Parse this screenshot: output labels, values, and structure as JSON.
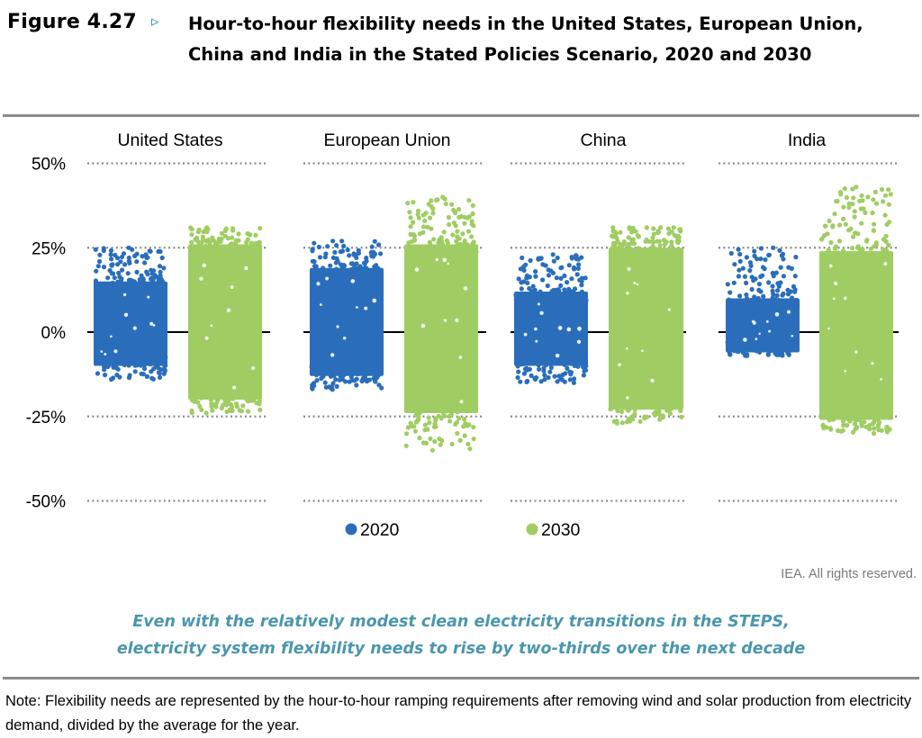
{
  "header": {
    "figure_label": "Figure 4.27",
    "arrow_glyph": "▹",
    "title": "Hour-to-hour flexibility needs in the United States, European Union, China and India in the Stated Policies Scenario, 2020 and 2030"
  },
  "colors": {
    "series_2020": "#2a6ebb",
    "series_2030": "#a0cd63",
    "gridline": "#8a8a8a",
    "zero_line": "#000000",
    "key_message": "#4a97ad",
    "rule": "#8c8c8c"
  },
  "chart_data": {
    "type": "scatter",
    "subtype": "strip-plot (jittered hourly points)",
    "title": "Hour-to-hour flexibility needs in the United States, European Union, China and India in the Stated Policies Scenario, 2020 and 2030",
    "xlabel": "",
    "ylabel": "",
    "y_unit": "% of yearly average",
    "ylim": [
      -50,
      50
    ],
    "yticks": [
      50,
      25,
      0,
      -25,
      -50
    ],
    "ytick_labels": [
      "50%",
      "25%",
      "0%",
      "-25%",
      "-50%"
    ],
    "grid": "dotted horizontal at 50%, 25%, -25%, -50%; solid line at 0%",
    "legend_position": "bottom-center",
    "categories": [
      "United States",
      "European Union",
      "China",
      "India"
    ],
    "series": [
      {
        "name": "2020",
        "color": "#2a6ebb",
        "ranges": [
          {
            "category": "United States",
            "dense_min": -10,
            "dense_max": 15,
            "min": -14,
            "max": 25
          },
          {
            "category": "European Union",
            "dense_min": -13,
            "dense_max": 19,
            "min": -17,
            "max": 27
          },
          {
            "category": "China",
            "dense_min": -10,
            "dense_max": 12,
            "min": -15,
            "max": 23
          },
          {
            "category": "India",
            "dense_min": -6,
            "dense_max": 10,
            "min": -7,
            "max": 25
          }
        ]
      },
      {
        "name": "2030",
        "color": "#a0cd63",
        "ranges": [
          {
            "category": "United States",
            "dense_min": -20,
            "dense_max": 26,
            "min": -24,
            "max": 31
          },
          {
            "category": "European Union",
            "dense_min": -24,
            "dense_max": 26,
            "min": -35,
            "max": 40
          },
          {
            "category": "China",
            "dense_min": -23,
            "dense_max": 25,
            "min": -27,
            "max": 31
          },
          {
            "category": "India",
            "dense_min": -26,
            "dense_max": 24,
            "min": -30,
            "max": 43
          }
        ]
      }
    ],
    "legend": [
      "2020",
      "2030"
    ]
  },
  "copyright": "IEA. All rights reserved.",
  "key_message": {
    "line1": "Even with the relatively modest clean electricity transitions in the STEPS,",
    "line2": "electricity system flexibility needs to rise by two-thirds over the next decade"
  },
  "note": "Note: Flexibility needs are represented by the hour-to-hour ramping requirements after removing wind and solar production from electricity demand, divided by the average for the year."
}
